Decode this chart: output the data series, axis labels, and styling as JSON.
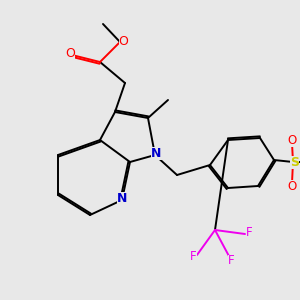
{
  "background_color": "#e8e8e8",
  "bond_color": "#000000",
  "atom_colors": {
    "O": "#ff0000",
    "N": "#0000cc",
    "F": "#ee00ee",
    "S": "#cccc00",
    "C": "#000000"
  },
  "figsize": [
    3.0,
    3.0
  ],
  "dpi": 100
}
